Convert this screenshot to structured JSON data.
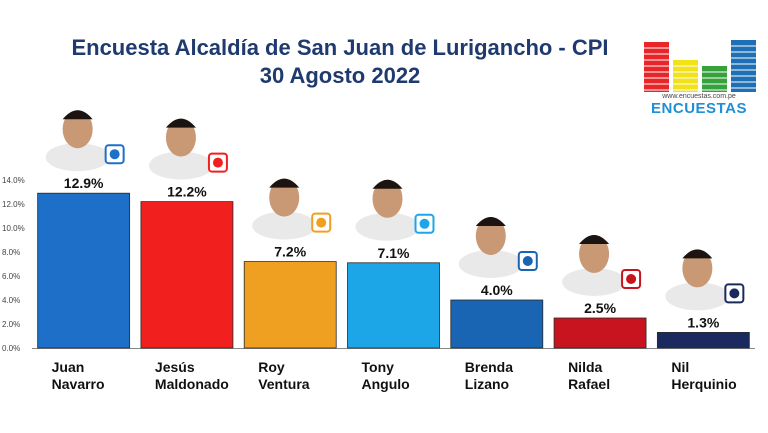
{
  "header": {
    "title_line1": "Encuesta Alcaldía de San Juan de Lurigancho - CPI",
    "title_line2": "30 Agosto 2022"
  },
  "logo": {
    "url": "www.encuestas.com.pe",
    "brand": "ENCUESTAS",
    "bar_colors": [
      "#e8262a",
      "#f2e21a",
      "#36a23c",
      "#1f6fb5"
    ]
  },
  "chart_data": {
    "type": "bar",
    "title": "Encuesta Alcaldía de San Juan de Lurigancho - CPI",
    "subtitle": "30 Agosto 2022",
    "categories": [
      [
        "Juan",
        "Navarro"
      ],
      [
        "Jesús",
        "Maldonado"
      ],
      [
        "Roy",
        "Ventura"
      ],
      [
        "Tony",
        "Angulo"
      ],
      [
        "Brenda",
        "Lizano"
      ],
      [
        "Nilda",
        "Rafael"
      ],
      [
        "Nil",
        "Herquinio"
      ]
    ],
    "values": [
      12.9,
      12.2,
      7.2,
      7.1,
      4.0,
      2.5,
      1.3
    ],
    "value_labels": [
      "12.9%",
      "12.2%",
      "7.2%",
      "7.1%",
      "4.0%",
      "2.5%",
      "1.3%"
    ],
    "colors": [
      "#1e6fc8",
      "#f21f1f",
      "#f0a020",
      "#1ca6e8",
      "#1a64b4",
      "#c8141e",
      "#1a2a5e"
    ],
    "ylim": [
      0,
      14
    ],
    "yticks": [
      "0.0%",
      "2.0%",
      "4.0%",
      "6.0%",
      "8.0%",
      "10.0%",
      "12.0%",
      "14.0%"
    ],
    "party_icons": [
      "party-a-icon",
      "party-somos-peru-icon",
      "party-k-icon",
      "party-r-icon",
      "party-avanza-pais-icon",
      "party-pencil-icon",
      "party-podemos-icon"
    ],
    "grid": false,
    "legend": "none"
  }
}
